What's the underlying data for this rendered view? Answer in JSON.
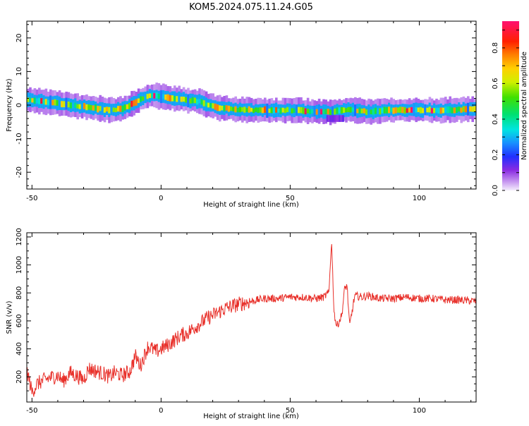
{
  "title": "KOM5.2024.075.11.24.G05",
  "chart_data": [
    {
      "type": "heatmap",
      "xlabel": "Height of straight line (km)",
      "ylabel": "Frequency (Hz)",
      "xlim": [
        -52,
        122
      ],
      "ylim": [
        -25,
        25
      ],
      "xticks": [
        -50,
        0,
        50,
        100
      ],
      "yticks": [
        -20,
        -10,
        0,
        10,
        20
      ],
      "colorbar": {
        "label": "Normalized spectral amplitude",
        "range": [
          0,
          0.95
        ],
        "ticks": [
          0.0,
          0.2,
          0.4,
          0.6,
          0.8
        ]
      },
      "ridge": {
        "x": [
          -52,
          -45,
          -40,
          -35,
          -30,
          -25,
          -20,
          -15,
          -10,
          -5,
          0,
          5,
          10,
          15,
          20,
          25,
          30,
          40,
          50,
          60,
          65,
          70,
          75,
          80,
          90,
          100,
          110,
          122
        ],
        "freq": [
          1.5,
          1.0,
          0.5,
          0.0,
          -0.5,
          -1.0,
          -1.5,
          -1.0,
          1.0,
          3.0,
          2.5,
          2.0,
          1.5,
          1.0,
          -0.5,
          -1.0,
          -1.5,
          -1.5,
          -1.5,
          -2.0,
          -2.0,
          -1.5,
          -1.5,
          -2.0,
          -1.5,
          -1.5,
          -1.5,
          -1.2
        ]
      }
    },
    {
      "type": "line",
      "xlabel": "Height of straight line (km)",
      "ylabel": "SNR (v/v)",
      "xlim": [
        -52,
        122
      ],
      "ylim": [
        20,
        1230
      ],
      "xticks": [
        -50,
        0,
        50,
        100
      ],
      "yticks": [
        200,
        400,
        600,
        800,
        1000,
        1200
      ],
      "series": [
        {
          "color": "#e8302a",
          "x": [
            -52,
            -50,
            -48,
            -45,
            -42,
            -40,
            -38,
            -35,
            -32,
            -30,
            -28,
            -25,
            -22,
            -20,
            -18,
            -15,
            -12,
            -10,
            -8,
            -5,
            -2,
            0,
            2,
            5,
            8,
            10,
            12,
            15,
            18,
            20,
            25,
            30,
            35,
            40,
            45,
            50,
            55,
            60,
            63,
            65,
            66,
            67,
            68,
            70,
            71,
            72,
            73,
            75,
            78,
            80,
            85,
            90,
            95,
            100,
            105,
            110,
            115,
            122
          ],
          "values": [
            250,
            90,
            150,
            180,
            200,
            210,
            170,
            230,
            200,
            180,
            260,
            240,
            220,
            200,
            230,
            210,
            240,
            350,
            280,
            420,
            380,
            400,
            420,
            460,
            500,
            510,
            540,
            580,
            620,
            640,
            690,
            720,
            740,
            760,
            760,
            770,
            770,
            760,
            770,
            800,
            1180,
            660,
            560,
            640,
            820,
            860,
            560,
            780,
            770,
            780,
            760,
            760,
            770,
            760,
            760,
            750,
            750,
            740
          ]
        }
      ]
    }
  ]
}
